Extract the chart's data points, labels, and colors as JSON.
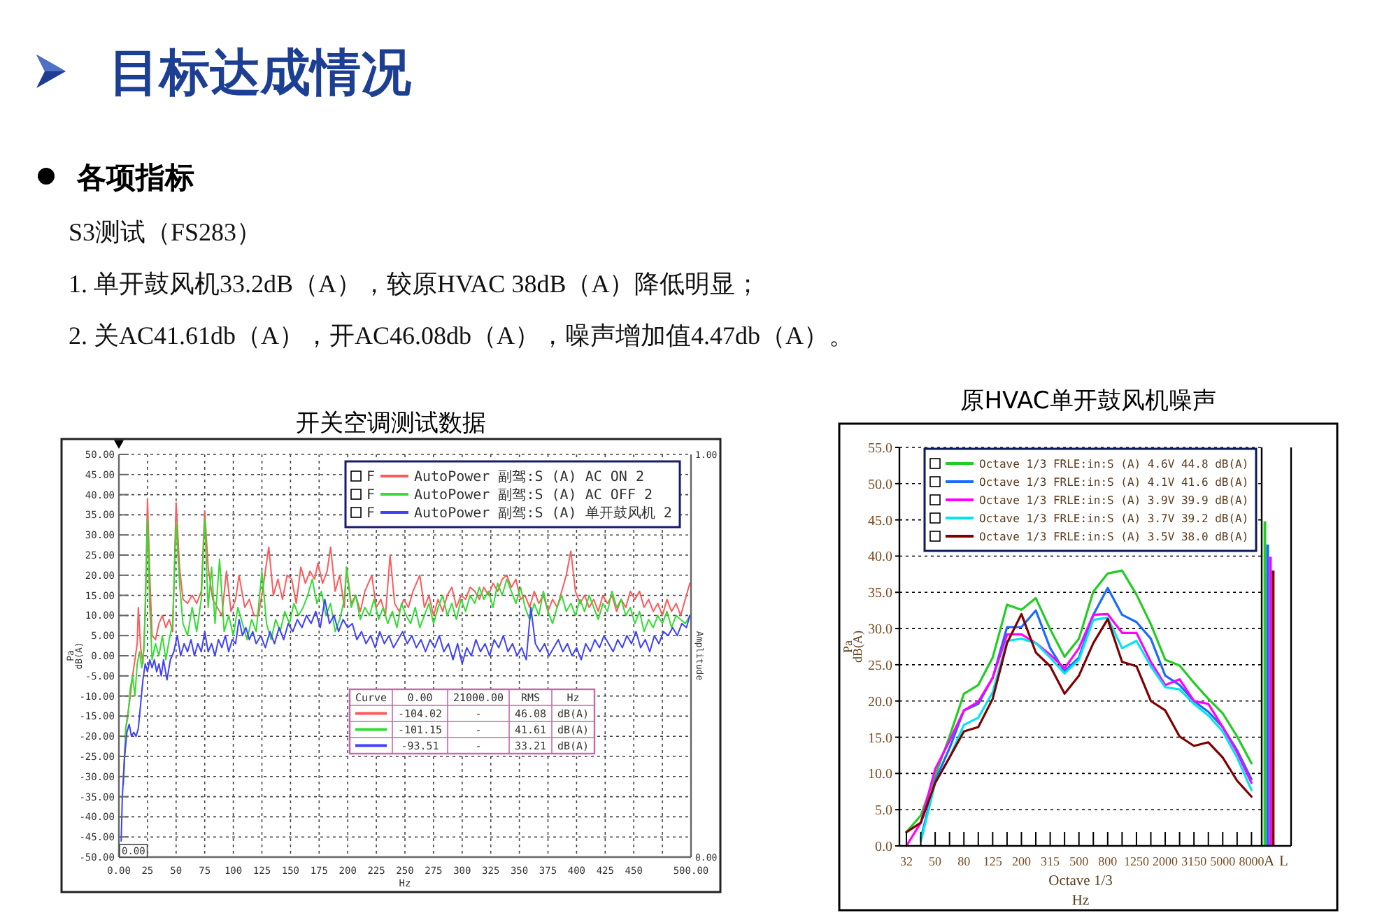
{
  "chart_data": [
    {
      "type": "other",
      "title": "目标达成情况",
      "subtitle": "各项指标",
      "annotations": [
        "S3测试（FS283）",
        "1. 单开鼓风机33.2dB（A），较原HVAC 38dB（A）降低明显；",
        "2. 关AC41.61db（A），开AC46.08db（A），噪声增加值4.47db（A）。"
      ]
    },
    {
      "type": "line",
      "title": "开关空调测试数据",
      "xlabel": "Hz",
      "ylabel": "Pa\ndB(A)",
      "y2label": "Amplitude",
      "xlim": [
        0,
        500
      ],
      "xticks": [
        {
          "value": 0,
          "label": "0.00"
        },
        25,
        50,
        75,
        100,
        125,
        150,
        175,
        200,
        225,
        250,
        275,
        300,
        325,
        350,
        375,
        400,
        425,
        450,
        {
          "value": 475,
          "label": null
        },
        {
          "value": 500,
          "label": "500.00"
        }
      ],
      "ylim": [
        -50,
        50
      ],
      "yticks": [
        {
          "value": -50,
          "label": "-50.00"
        },
        {
          "value": -45,
          "label": "-45.00"
        },
        {
          "value": -40,
          "label": "-40.00"
        },
        {
          "value": -35,
          "label": "-35.00"
        },
        {
          "value": -30,
          "label": "-30.00"
        },
        {
          "value": -25,
          "label": "-25.00"
        },
        {
          "value": -20,
          "label": "-20.00"
        },
        {
          "value": -15,
          "label": "-15.00"
        },
        {
          "value": -10,
          "label": "-10.00"
        },
        {
          "value": -5,
          "label": "-5.00"
        },
        {
          "value": 0,
          "label": "0.00"
        },
        {
          "value": 5,
          "label": "5.00"
        },
        {
          "value": 10,
          "label": "10.00"
        },
        {
          "value": 15,
          "label": "15.00"
        },
        {
          "value": 20,
          "label": "20.00"
        },
        {
          "value": 25,
          "label": "25.00"
        },
        {
          "value": 30,
          "label": "30.00"
        },
        {
          "value": 35,
          "label": "35.00"
        },
        {
          "value": 40,
          "label": "40.00"
        },
        {
          "value": 45,
          "label": "45.00"
        },
        {
          "value": 50,
          "label": "50.00"
        }
      ],
      "y2lim": [
        0,
        1
      ],
      "y2ticks": [
        {
          "value": 0,
          "label": "0.00"
        },
        {
          "value": 1,
          "label": "1.00"
        }
      ],
      "grid": true,
      "legend": "top right",
      "series": [
        {
          "name": "AutoPower 副驾:S (A) AC ON 2",
          "color": "#ff5a5a",
          "x": [
            4,
            6,
            8,
            10,
            12,
            14,
            16,
            17,
            19,
            21,
            23,
            25,
            27,
            29,
            32,
            35,
            38,
            41,
            44,
            47,
            50,
            53,
            56,
            60,
            64,
            68,
            72,
            75,
            78,
            82,
            86,
            90,
            94,
            98,
            102,
            105,
            110,
            114,
            118,
            122,
            126,
            131,
            135,
            139,
            143,
            147,
            151,
            155,
            159,
            163,
            167,
            171,
            174,
            178,
            182,
            185,
            189,
            193,
            197,
            199,
            203,
            207,
            211,
            215,
            221,
            225,
            229,
            233,
            237,
            241,
            245,
            249,
            253,
            257,
            263,
            267,
            271,
            275,
            279,
            283,
            287,
            291,
            295,
            299,
            303,
            307,
            311,
            315,
            319,
            323,
            327,
            331,
            335,
            339,
            343,
            347,
            351,
            355,
            359,
            363,
            367,
            371,
            375,
            379,
            383,
            387,
            391,
            395,
            399,
            403,
            407,
            411,
            415,
            419,
            423,
            427,
            431,
            435,
            439,
            443,
            447,
            451,
            455,
            459,
            463,
            467,
            471,
            475,
            479,
            483,
            487,
            491,
            495,
            499
          ],
          "values": [
            -30,
            -18,
            -14,
            -10,
            -5,
            -1,
            3,
            12,
            2,
            -2,
            10,
            39,
            20,
            5,
            4,
            8,
            10,
            7,
            9,
            6,
            38,
            22,
            14,
            13,
            15,
            13,
            16,
            36,
            22,
            14,
            12,
            10,
            21,
            11,
            14,
            20,
            12,
            14,
            10,
            10,
            17,
            27,
            15,
            19,
            14,
            20,
            19,
            13,
            22,
            18,
            21,
            19,
            23,
            18,
            21,
            27,
            16,
            20,
            12,
            22,
            13,
            15,
            11,
            16,
            20,
            12,
            14,
            10,
            25,
            13,
            11,
            14,
            12,
            16,
            20,
            12,
            15,
            10,
            14,
            11,
            15,
            17,
            12,
            15,
            14,
            17,
            16,
            14,
            17,
            15,
            18,
            16,
            19,
            20,
            17,
            19,
            14,
            15,
            12,
            16,
            13,
            15,
            11,
            14,
            12,
            16,
            20,
            26,
            16,
            13,
            15,
            12,
            14,
            11,
            15,
            13,
            15,
            11,
            14,
            12,
            16,
            14,
            16,
            12,
            14,
            11,
            13,
            10,
            14,
            11,
            13,
            10,
            14,
            18
          ]
        },
        {
          "name": "AutoPower 副驾:S (A) AC OFF 2",
          "color": "#33dd33",
          "x": [
            4,
            6,
            8,
            10,
            12,
            14,
            16,
            18,
            20,
            22,
            25,
            27,
            29,
            32,
            35,
            38,
            41,
            44,
            47,
            50,
            53,
            56,
            60,
            64,
            68,
            72,
            75,
            78,
            81,
            84,
            88,
            92,
            96,
            100,
            104,
            108,
            112,
            116,
            120,
            125,
            129,
            133,
            137,
            141,
            145,
            149,
            153,
            157,
            161,
            165,
            169,
            173,
            177,
            181,
            185,
            189,
            193,
            197,
            199,
            203,
            207,
            211,
            215,
            219,
            223,
            227,
            231,
            235,
            239,
            243,
            247,
            251,
            255,
            259,
            263,
            267,
            271,
            275,
            279,
            283,
            287,
            291,
            295,
            299,
            303,
            307,
            311,
            315,
            319,
            323,
            327,
            331,
            335,
            339,
            343,
            347,
            351,
            355,
            359,
            363,
            367,
            371,
            375,
            379,
            383,
            387,
            391,
            395,
            399,
            403,
            407,
            411,
            415,
            419,
            423,
            427,
            431,
            435,
            439,
            443,
            447,
            451,
            455,
            459,
            463,
            467,
            471,
            475,
            479,
            483,
            487,
            491,
            495,
            499
          ],
          "values": [
            -32,
            -18,
            -15,
            -8,
            -5,
            -10,
            -2,
            1,
            -3,
            2,
            34,
            12,
            -1,
            3,
            0,
            5,
            -1,
            4,
            8,
            33,
            18,
            8,
            5,
            12,
            6,
            14,
            34,
            12,
            22,
            8,
            24,
            6,
            10,
            5,
            12,
            8,
            4,
            9,
            6,
            21,
            8,
            4,
            9,
            6,
            11,
            8,
            13,
            10,
            12,
            15,
            19,
            13,
            16,
            10,
            13,
            6,
            9,
            14,
            22,
            12,
            15,
            9,
            12,
            10,
            14,
            9,
            12,
            8,
            11,
            7,
            13,
            10,
            8,
            12,
            7,
            10,
            13,
            8,
            12,
            15,
            10,
            13,
            9,
            14,
            11,
            15,
            13,
            17,
            14,
            16,
            12,
            18,
            15,
            19,
            16,
            13,
            17,
            12,
            9,
            13,
            10,
            16,
            11,
            8,
            12,
            15,
            11,
            13,
            10,
            14,
            11,
            15,
            12,
            9,
            13,
            11,
            16,
            12,
            14,
            10,
            12,
            8,
            11,
            6,
            9,
            7,
            10,
            8,
            11,
            7,
            10,
            9,
            8,
            10
          ]
        },
        {
          "name": "AutoPower 副驾:S (A) 单开鼓风机 2",
          "color": "#4040ff",
          "x": [
            2,
            3,
            5,
            7,
            9,
            11,
            13,
            15,
            17,
            19,
            21,
            23,
            25,
            27,
            29,
            31,
            33,
            35,
            37,
            39,
            42,
            45,
            48,
            51,
            54,
            57,
            60,
            63,
            66,
            69,
            72,
            75,
            78,
            81,
            84,
            87,
            90,
            93,
            96,
            99,
            102,
            105,
            108,
            111,
            114,
            117,
            120,
            124,
            128,
            132,
            136,
            140,
            144,
            148,
            152,
            156,
            160,
            164,
            168,
            172,
            176,
            180,
            184,
            188,
            192,
            196,
            200,
            204,
            208,
            212,
            216,
            220,
            224,
            228,
            232,
            236,
            240,
            244,
            248,
            252,
            256,
            260,
            264,
            268,
            272,
            276,
            280,
            284,
            288,
            292,
            296,
            300,
            304,
            308,
            312,
            316,
            320,
            324,
            328,
            332,
            336,
            340,
            344,
            348,
            352,
            356,
            360,
            364,
            368,
            372,
            376,
            380,
            384,
            388,
            392,
            396,
            400,
            404,
            408,
            412,
            416,
            420,
            424,
            428,
            432,
            436,
            440,
            444,
            448,
            452,
            456,
            460,
            464,
            468,
            472,
            476,
            480,
            484,
            488,
            492,
            496,
            499
          ],
          "values": [
            -46,
            -35,
            -25,
            -19,
            -17,
            -20,
            -19,
            -20,
            -18,
            -12,
            -6,
            -2,
            -4,
            -1,
            -3,
            -1,
            -4,
            -2,
            -5,
            -1,
            -6,
            -1,
            1,
            5,
            0,
            3,
            1,
            4,
            0,
            3,
            1,
            6,
            1,
            3,
            0,
            4,
            2,
            5,
            1,
            4,
            3,
            9,
            5,
            7,
            4,
            6,
            3,
            5,
            2,
            6,
            3,
            7,
            4,
            8,
            6,
            9,
            7,
            10,
            8,
            11,
            7,
            14,
            8,
            10,
            6,
            9,
            7,
            8,
            4,
            6,
            3,
            5,
            2,
            6,
            3,
            5,
            2,
            4,
            6,
            3,
            5,
            2,
            4,
            1,
            4,
            2,
            5,
            1,
            3,
            -1,
            3,
            -2,
            2,
            0,
            4,
            1,
            3,
            0,
            4,
            2,
            5,
            1,
            3,
            0,
            2,
            -1,
            12,
            3,
            1,
            3,
            0,
            2,
            4,
            1,
            3,
            0,
            2,
            -1,
            3,
            1,
            4,
            2,
            5,
            3,
            1,
            4,
            2,
            5,
            3,
            6,
            2,
            4,
            1,
            5,
            3,
            6,
            5,
            7,
            5,
            8,
            7,
            10
          ]
        }
      ],
      "annotations": [
        "F",
        "F",
        "F",
        "Curve",
        "0.00",
        "21000.00",
        "RMS",
        "Hz",
        "-104.02",
        "-",
        "46.08",
        "dB(A)",
        "-101.15",
        "-",
        "41.61",
        "dB(A)",
        "-93.51",
        "-",
        "33.21",
        "dB(A)",
        "0.00"
      ]
    },
    {
      "type": "line",
      "title": "原HVAC单开鼓风机噪声",
      "xlabel": "Octave 1/3\nHz",
      "ylabel": "Pa\ndB(A)",
      "categories": [
        "32",
        null,
        "50",
        null,
        "80",
        null,
        "125",
        null,
        "200",
        null,
        "315",
        null,
        "500",
        null,
        "800",
        null,
        "1250",
        null,
        "2000",
        null,
        "3150",
        null,
        "5000",
        null,
        "8000"
      ],
      "ylim": [
        0,
        55
      ],
      "yticks": [
        {
          "value": 0,
          "label": "0.0"
        },
        {
          "value": 5,
          "label": "5.0"
        },
        {
          "value": 10,
          "label": "10.0"
        },
        {
          "value": 15,
          "label": "15.0"
        },
        {
          "value": 20,
          "label": "20.0"
        },
        {
          "value": 25,
          "label": "25.0"
        },
        {
          "value": 30,
          "label": "30.0"
        },
        {
          "value": 35,
          "label": "35.0"
        },
        {
          "value": 40,
          "label": "40.0"
        },
        {
          "value": 45,
          "label": "45.0"
        },
        {
          "value": 50,
          "label": "50.0"
        },
        {
          "value": 55,
          "label": "55.0"
        }
      ],
      "grid": "y",
      "legend": "top right",
      "series": [
        {
          "name": "Octave 1/3 FRLE:in:S (A) 4.6V 44.8 dB(A)",
          "color": "#22cc22",
          "values": [
            1.9,
            4.2,
            9.7,
            15.1,
            21.0,
            22.2,
            26.0,
            33.3,
            32.6,
            34.2,
            29.9,
            26.1,
            28.6,
            35.1,
            37.6,
            38.0,
            34.7,
            30.6,
            25.7,
            24.9,
            22.5,
            20.3,
            18.3,
            15.1,
            11.4
          ]
        },
        {
          "name": "Octave 1/3 FRLE:in:S (A) 4.1V 41.6 dB(A)",
          "color": "#1a6aff",
          "values": [
            null,
            1.0,
            9.0,
            13.5,
            18.7,
            19.6,
            23.2,
            30.2,
            30.2,
            32.5,
            27.3,
            24.1,
            26.0,
            31.9,
            35.6,
            31.9,
            30.9,
            28.6,
            23.5,
            22.2,
            20.0,
            18.5,
            16.4,
            13.2,
            9.2
          ]
        },
        {
          "name": "Octave 1/3 FRLE:in:S (A) 3.9V 39.9 dB(A)",
          "color": "#ff00ff",
          "values": [
            0.0,
            3.2,
            10.6,
            14.5,
            18.7,
            19.9,
            23.2,
            29.2,
            29.2,
            28.0,
            26.4,
            24.5,
            27.3,
            31.9,
            32.0,
            29.4,
            29.4,
            25.4,
            22.2,
            23.0,
            20.0,
            19.6,
            16.4,
            12.9,
            8.7
          ]
        },
        {
          "name": "Octave 1/3 FRLE:in:S (A) 3.7V 39.2 dB(A)",
          "color": "#00e5ee",
          "values": [
            null,
            0.6,
            8.7,
            12.2,
            16.7,
            17.7,
            21.2,
            28.3,
            28.6,
            28.0,
            26.0,
            23.8,
            25.7,
            31.2,
            31.5,
            27.3,
            28.3,
            24.8,
            21.9,
            21.6,
            19.6,
            18.0,
            15.8,
            12.2,
            7.7
          ]
        },
        {
          "name": "Octave 1/3 FRLE:in:S (A) 3.5V 38.0 dB(A)",
          "color": "#800000",
          "values": [
            1.9,
            3.2,
            8.7,
            12.2,
            15.8,
            16.4,
            20.3,
            28.0,
            32.0,
            26.7,
            24.8,
            21.0,
            23.5,
            28.0,
            31.3,
            25.4,
            24.8,
            20.0,
            18.7,
            15.1,
            13.8,
            14.3,
            12.2,
            9.0,
            6.8
          ]
        }
      ]
    },
    {
      "type": "bar",
      "categories": [
        "A",
        "L"
      ],
      "ylim": [
        0,
        55
      ],
      "tick_labels": "x",
      "series": [
        {
          "color": "#22cc22",
          "values": [
            44.8,
            null
          ]
        },
        {
          "color": "#1a6aff",
          "values": [
            41.6,
            null
          ]
        },
        {
          "color": "#ff00ff",
          "values": [
            39.9,
            null
          ]
        },
        {
          "color": "#800000",
          "values": [
            38.0,
            null
          ]
        }
      ]
    }
  ]
}
